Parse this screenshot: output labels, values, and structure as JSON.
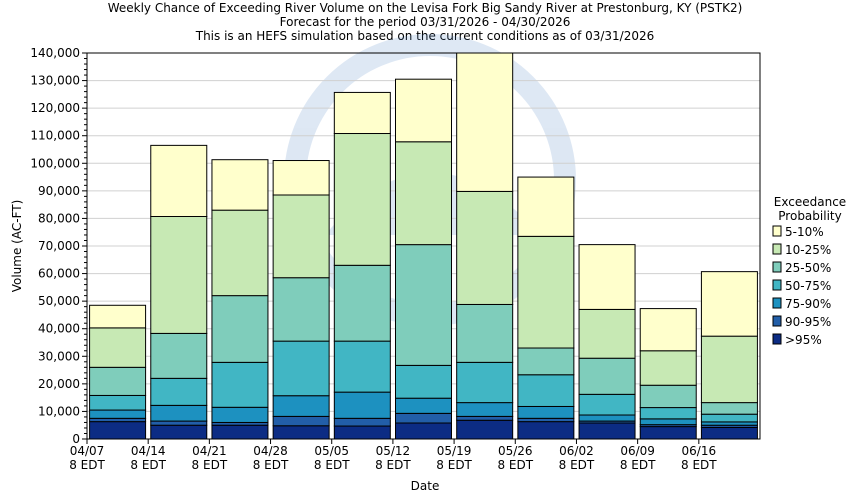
{
  "chart_data": {
    "type": "bar",
    "stacked": true,
    "title": "Weekly Chance of Exceeding River Volume on the Levisa Fork Big Sandy River at Prestonburg, KY (PSTK2)",
    "subtitle": "Forecast for the period 03/31/2026 - 04/30/2026",
    "subtitle2": "This is an HEFS simulation based on the current conditions as of 03/31/2026",
    "xlabel": "Date",
    "ylabel": "Volume (AC-FT)",
    "ylim": [
      0,
      140000
    ],
    "yticks": [
      0,
      10000,
      20000,
      30000,
      40000,
      50000,
      60000,
      70000,
      80000,
      90000,
      100000,
      110000,
      120000,
      130000,
      140000
    ],
    "ytick_labels": [
      "0",
      "10,000",
      "20,000",
      "30,000",
      "40,000",
      "50,000",
      "60,000",
      "70,000",
      "80,000",
      "90,000",
      "100,000",
      "110,000",
      "120,000",
      "130,000",
      "140,000"
    ],
    "grid": true,
    "xtick_labels": [
      [
        "04/07",
        "8 EDT"
      ],
      [
        "04/14",
        "8 EDT"
      ],
      [
        "04/21",
        "8 EDT"
      ],
      [
        "04/28",
        "8 EDT"
      ],
      [
        "05/05",
        "8 EDT"
      ],
      [
        "05/12",
        "8 EDT"
      ],
      [
        "05/19",
        "8 EDT"
      ],
      [
        "05/26",
        "8 EDT"
      ],
      [
        "06/02",
        "8 EDT"
      ],
      [
        "06/09",
        "8 EDT"
      ],
      [
        "06/16",
        "8 EDT"
      ]
    ],
    "legend": {
      "title_lines": [
        "Exceedance",
        "Probability"
      ],
      "placement": "right",
      "entries": [
        {
          "label": "5-10%",
          "color": "#ffffcc"
        },
        {
          "label": "10-25%",
          "color": "#c7e9b4"
        },
        {
          "label": "25-50%",
          "color": "#7fcdbb"
        },
        {
          "label": "50-75%",
          "color": "#41b6c4"
        },
        {
          "label": "75-90%",
          "color": "#1d91c0"
        },
        {
          "label": "90-95%",
          "color": "#225ea8"
        },
        {
          "label": ">95%",
          "color": "#0c2c84"
        }
      ]
    },
    "bands_order_bottom_to_top": [
      ">95%",
      "90-95%",
      "75-90%",
      "50-75%",
      "25-50%",
      "10-25%",
      "5-10%"
    ],
    "bars": [
      {
        "boundaries": [
          6300,
          7500,
          10500,
          15800,
          26000,
          40300,
          48500
        ]
      },
      {
        "boundaries": [
          5000,
          6500,
          12200,
          22000,
          38300,
          80700,
          106500
        ]
      },
      {
        "boundaries": [
          5000,
          6000,
          11500,
          27800,
          52000,
          83000,
          101300
        ]
      },
      {
        "boundaries": [
          4800,
          8200,
          15700,
          35500,
          58500,
          88500,
          101000
        ]
      },
      {
        "boundaries": [
          4700,
          7500,
          17000,
          35500,
          63000,
          110800,
          125700
        ]
      },
      {
        "boundaries": [
          5800,
          9300,
          14800,
          26700,
          70500,
          107800,
          130500
        ]
      },
      {
        "boundaries": [
          6800,
          8200,
          13200,
          27800,
          48800,
          89800,
          140000
        ]
      },
      {
        "boundaries": [
          6300,
          7500,
          11800,
          23300,
          33000,
          73500,
          95000
        ]
      },
      {
        "boundaries": [
          5800,
          6500,
          8700,
          16200,
          29300,
          47000,
          70500
        ]
      },
      {
        "boundaries": [
          4500,
          5200,
          7300,
          11400,
          19500,
          32000,
          47300
        ]
      },
      {
        "boundaries": [
          4200,
          5000,
          6200,
          9000,
          13200,
          37300,
          60700
        ]
      }
    ]
  }
}
